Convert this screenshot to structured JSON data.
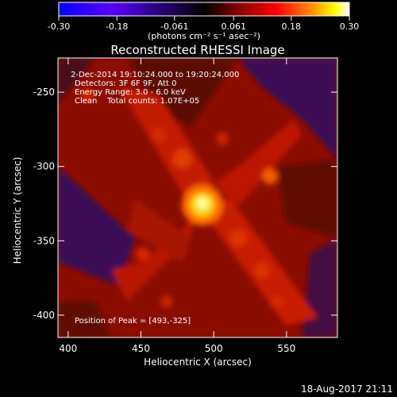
{
  "chart_data": {
    "type": "heatmap",
    "title": "Reconstructed RHESSI Image",
    "xlabel": "Heliocentric X (arcsec)",
    "ylabel": "Heliocentric Y (arcsec)",
    "xlim": [
      393,
      585
    ],
    "ylim": [
      -415,
      -227
    ],
    "xticks": [
      400,
      450,
      500,
      550
    ],
    "yticks": [
      -250,
      -300,
      -350,
      -400
    ],
    "colorbar": {
      "range": [
        -0.3,
        0.3
      ],
      "ticks": [
        "-0.30",
        "-0.18",
        "-0.061",
        "0.061",
        "0.18",
        "0.30"
      ],
      "unit_label": "(photons cm⁻² s⁻¹ asec⁻²)",
      "colors": [
        "#0000ff",
        "#5a00ff",
        "#000000",
        "#8b0000",
        "#ff0000",
        "#ff8c00",
        "#ffff00",
        "#ffffff"
      ]
    },
    "annotations": [
      "2-Dec-2014 19:10:24.000 to 19:20:24.000",
      "Detectors: 3F 6F 9F, Att 0",
      "Energy Range: 3.0 - 6.0 keV",
      "Clean    Total counts: 1.07E+05"
    ],
    "peak_label": "Position of Peak = [493,-325]",
    "peak": {
      "x": 493,
      "y": -325
    }
  },
  "footer": {
    "timestamp": "18-Aug-2017 21:11"
  }
}
